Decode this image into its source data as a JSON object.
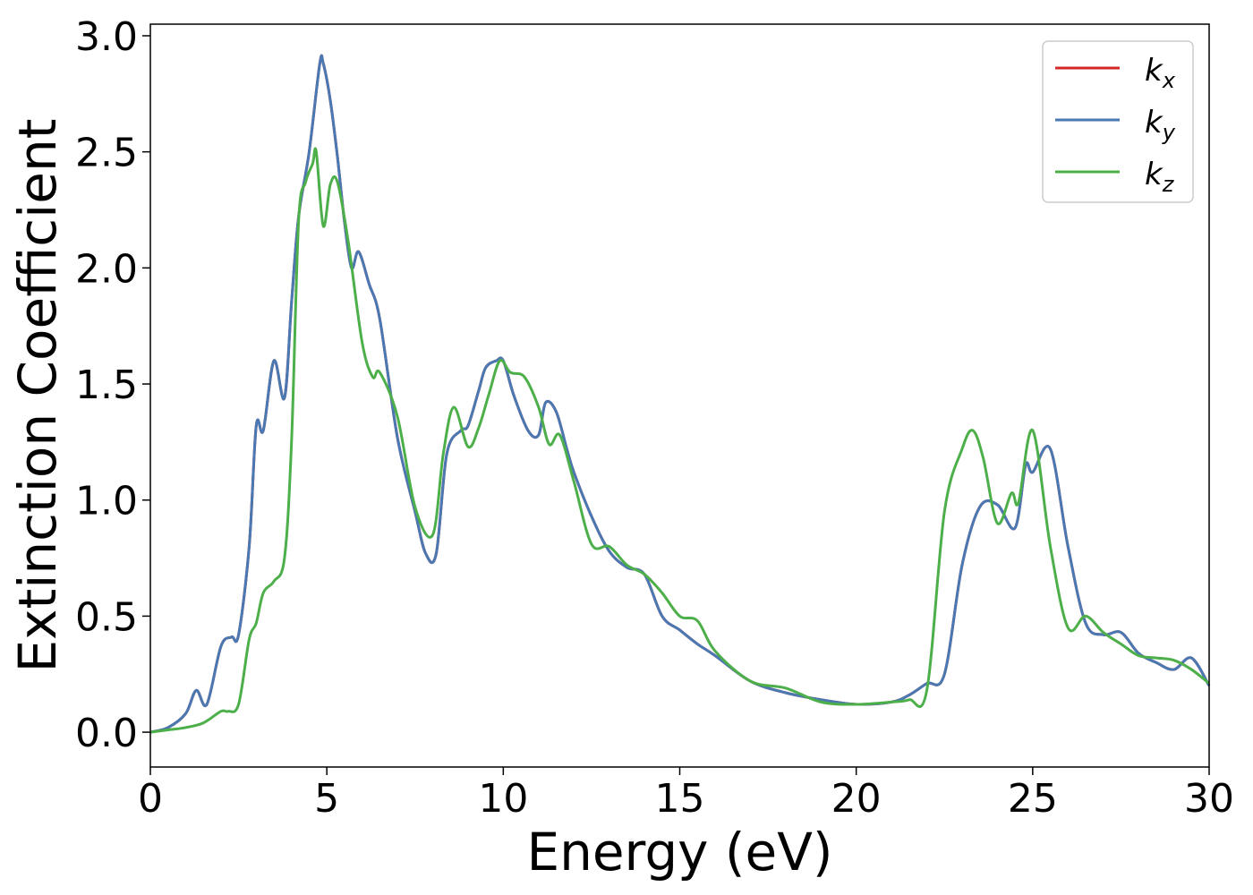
{
  "chart_data": {
    "type": "line",
    "title": "",
    "xlabel": "Energy (eV)",
    "ylabel": "Extinction Coefficient",
    "xlim": [
      0,
      30
    ],
    "ylim": [
      -0.15,
      3.05
    ],
    "xticks": [
      0,
      5,
      10,
      15,
      20,
      25,
      30
    ],
    "xtick_labels": [
      "0",
      "5",
      "10",
      "15",
      "20",
      "25",
      "30"
    ],
    "yticks": [
      0.0,
      0.5,
      1.0,
      1.5,
      2.0,
      2.5,
      3.0
    ],
    "ytick_labels": [
      "0.0",
      "0.5",
      "1.0",
      "1.5",
      "2.0",
      "2.5",
      "3.0"
    ],
    "grid": false,
    "legend_position": "top-right",
    "series": [
      {
        "name": "k",
        "subscript": "x",
        "color": "#d62728",
        "x": [
          0,
          0.5,
          1,
          1.3,
          1.6,
          2,
          2.3,
          2.5,
          2.8,
          3,
          3.2,
          3.5,
          3.8,
          4,
          4.2,
          4.5,
          4.8,
          4.9,
          5.1,
          5.3,
          5.5,
          5.7,
          5.9,
          6.2,
          6.5,
          7,
          7.5,
          7.8,
          8.1,
          8.4,
          8.8,
          9,
          9.3,
          9.5,
          9.8,
          10,
          10.3,
          10.7,
          11,
          11.2,
          11.5,
          11.8,
          12,
          12.5,
          13,
          13.5,
          14,
          14.5,
          15,
          15.5,
          16,
          17,
          18,
          19,
          20,
          21,
          21.5,
          22,
          22.5,
          23,
          23.5,
          24,
          24.5,
          24.8,
          25,
          25.5,
          26,
          26.5,
          27,
          27.5,
          28,
          28.5,
          29,
          29.5,
          30
        ],
        "y": [
          0,
          0.02,
          0.08,
          0.18,
          0.12,
          0.37,
          0.41,
          0.42,
          0.8,
          1.32,
          1.3,
          1.6,
          1.44,
          1.85,
          2.22,
          2.5,
          2.88,
          2.88,
          2.72,
          2.48,
          2.2,
          2,
          2.07,
          1.93,
          1.78,
          1.27,
          0.95,
          0.77,
          0.77,
          1.2,
          1.3,
          1.32,
          1.47,
          1.57,
          1.6,
          1.6,
          1.45,
          1.3,
          1.28,
          1.42,
          1.38,
          1.22,
          1.12,
          0.93,
          0.78,
          0.71,
          0.68,
          0.5,
          0.44,
          0.38,
          0.33,
          0.22,
          0.17,
          0.14,
          0.12,
          0.13,
          0.16,
          0.21,
          0.25,
          0.72,
          0.97,
          0.98,
          0.88,
          1.15,
          1.12,
          1.22,
          0.8,
          0.47,
          0.42,
          0.43,
          0.34,
          0.3,
          0.27,
          0.32,
          0.2
        ]
      },
      {
        "name": "k",
        "subscript": "y",
        "color": "#4a78b2",
        "x": [
          0,
          0.5,
          1,
          1.3,
          1.6,
          2,
          2.3,
          2.5,
          2.8,
          3,
          3.2,
          3.5,
          3.8,
          4,
          4.2,
          4.5,
          4.8,
          4.9,
          5.1,
          5.3,
          5.5,
          5.7,
          5.9,
          6.2,
          6.5,
          7,
          7.5,
          7.8,
          8.1,
          8.4,
          8.8,
          9,
          9.3,
          9.5,
          9.8,
          10,
          10.3,
          10.7,
          11,
          11.2,
          11.5,
          11.8,
          12,
          12.5,
          13,
          13.5,
          14,
          14.5,
          15,
          15.5,
          16,
          17,
          18,
          19,
          20,
          21,
          21.5,
          22,
          22.5,
          23,
          23.5,
          24,
          24.5,
          24.8,
          25,
          25.5,
          26,
          26.5,
          27,
          27.5,
          28,
          28.5,
          29,
          29.5,
          30
        ],
        "y": [
          0,
          0.02,
          0.08,
          0.18,
          0.12,
          0.37,
          0.41,
          0.42,
          0.8,
          1.32,
          1.3,
          1.6,
          1.44,
          1.85,
          2.22,
          2.5,
          2.88,
          2.88,
          2.72,
          2.48,
          2.2,
          2,
          2.07,
          1.93,
          1.78,
          1.27,
          0.95,
          0.77,
          0.77,
          1.2,
          1.3,
          1.32,
          1.47,
          1.57,
          1.6,
          1.6,
          1.45,
          1.3,
          1.28,
          1.42,
          1.38,
          1.22,
          1.12,
          0.93,
          0.78,
          0.71,
          0.68,
          0.5,
          0.44,
          0.38,
          0.33,
          0.22,
          0.17,
          0.14,
          0.12,
          0.13,
          0.16,
          0.21,
          0.25,
          0.72,
          0.97,
          0.98,
          0.88,
          1.15,
          1.12,
          1.22,
          0.8,
          0.47,
          0.42,
          0.43,
          0.34,
          0.3,
          0.27,
          0.32,
          0.2
        ]
      },
      {
        "name": "k",
        "subscript": "z",
        "color": "#4daf4a",
        "x": [
          0,
          0.5,
          1,
          1.5,
          2,
          2.2,
          2.5,
          2.8,
          3,
          3.2,
          3.5,
          3.8,
          4,
          4.2,
          4.4,
          4.6,
          4.7,
          4.9,
          5.1,
          5.3,
          5.6,
          6,
          6.3,
          6.5,
          7,
          7.5,
          8,
          8.3,
          8.6,
          9,
          9.3,
          9.6,
          9.9,
          10.2,
          10.6,
          11,
          11.3,
          11.6,
          12,
          12.5,
          13,
          13.5,
          14,
          14.5,
          15,
          15.5,
          16,
          17,
          18,
          19,
          20,
          21,
          21.5,
          22,
          22.5,
          23,
          23.3,
          23.6,
          24,
          24.4,
          24.6,
          25,
          25.5,
          26,
          26.5,
          27,
          27.5,
          28,
          28.5,
          29,
          29.5,
          30
        ],
        "y": [
          0,
          0.01,
          0.02,
          0.04,
          0.09,
          0.09,
          0.12,
          0.4,
          0.47,
          0.6,
          0.65,
          0.75,
          1.25,
          2.2,
          2.37,
          2.45,
          2.5,
          2.18,
          2.36,
          2.37,
          2.12,
          1.68,
          1.53,
          1.55,
          1.36,
          0.97,
          0.85,
          1.2,
          1.4,
          1.23,
          1.31,
          1.46,
          1.6,
          1.55,
          1.53,
          1.4,
          1.24,
          1.28,
          1.08,
          0.81,
          0.8,
          0.72,
          0.68,
          0.6,
          0.5,
          0.48,
          0.35,
          0.22,
          0.19,
          0.13,
          0.12,
          0.13,
          0.14,
          0.18,
          0.95,
          1.22,
          1.3,
          1.18,
          0.9,
          1.03,
          0.99,
          1.3,
          0.8,
          0.45,
          0.5,
          0.43,
          0.38,
          0.33,
          0.32,
          0.31,
          0.27,
          0.21
        ]
      }
    ]
  }
}
